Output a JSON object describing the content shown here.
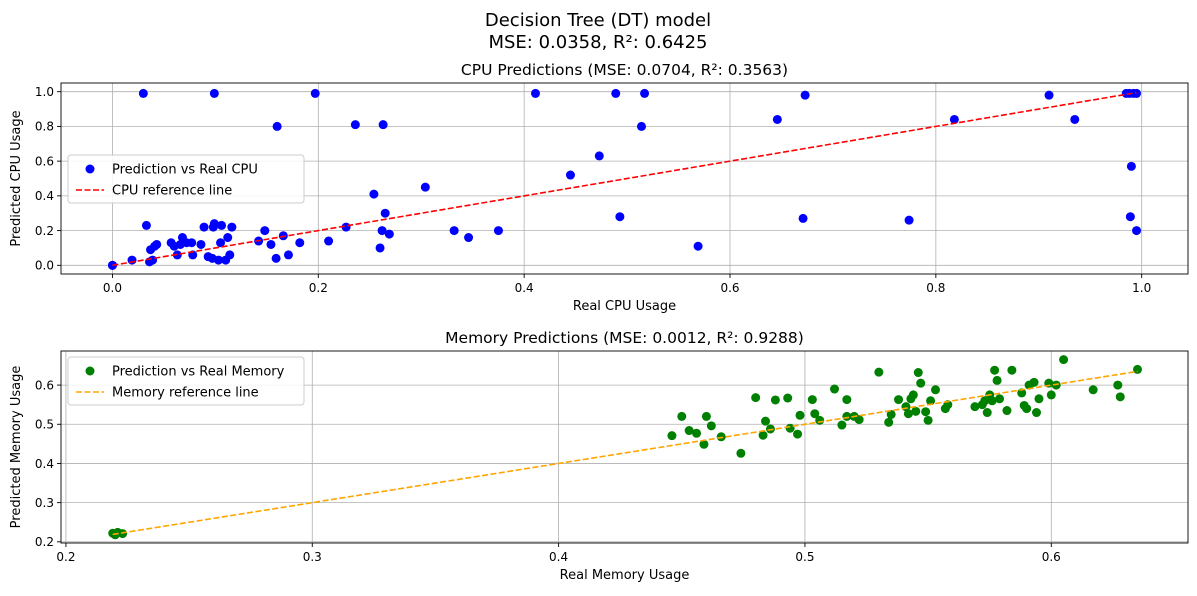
{
  "figure": {
    "title_line1": "Decision Tree (DT) model",
    "title_line2": "MSE: 0.0358, R²: 0.6425"
  },
  "chart_data": [
    {
      "type": "scatter",
      "title": "CPU Predictions (MSE: 0.0704, R²: 0.3563)",
      "xlabel": "Real CPU Usage",
      "ylabel": "Predicted CPU Usage",
      "xlim": [
        -0.05,
        1.045
      ],
      "ylim": [
        -0.05,
        1.05
      ],
      "xticks": [
        0.0,
        0.2,
        0.4,
        0.6,
        0.8,
        1.0
      ],
      "xtick_labels": [
        "0.0",
        "0.2",
        "0.4",
        "0.6",
        "0.8",
        "1.0"
      ],
      "yticks": [
        0.0,
        0.2,
        0.4,
        0.6,
        0.8,
        1.0
      ],
      "ytick_labels": [
        "0.0",
        "0.2",
        "0.4",
        "0.6",
        "0.8",
        "1.0"
      ],
      "grid": true,
      "legend_position": "center-left",
      "series": [
        {
          "name": "Prediction vs Real CPU",
          "kind": "scatter",
          "color": "#0000ff",
          "points": [
            [
              0.0,
              0.0
            ],
            [
              0.0,
              0.0
            ],
            [
              0.019,
              0.03
            ],
            [
              0.03,
              0.99
            ],
            [
              0.033,
              0.23
            ],
            [
              0.036,
              0.02
            ],
            [
              0.037,
              0.09
            ],
            [
              0.039,
              0.03
            ],
            [
              0.041,
              0.11
            ],
            [
              0.043,
              0.12
            ],
            [
              0.057,
              0.13
            ],
            [
              0.06,
              0.11
            ],
            [
              0.063,
              0.06
            ],
            [
              0.066,
              0.12
            ],
            [
              0.068,
              0.16
            ],
            [
              0.072,
              0.13
            ],
            [
              0.077,
              0.13
            ],
            [
              0.078,
              0.06
            ],
            [
              0.086,
              0.12
            ],
            [
              0.089,
              0.22
            ],
            [
              0.093,
              0.05
            ],
            [
              0.097,
              0.04
            ],
            [
              0.098,
              0.22
            ],
            [
              0.099,
              0.24
            ],
            [
              0.099,
              0.99
            ],
            [
              0.103,
              0.03
            ],
            [
              0.105,
              0.13
            ],
            [
              0.106,
              0.23
            ],
            [
              0.11,
              0.03
            ],
            [
              0.112,
              0.16
            ],
            [
              0.114,
              0.06
            ],
            [
              0.116,
              0.22
            ],
            [
              0.142,
              0.14
            ],
            [
              0.148,
              0.2
            ],
            [
              0.154,
              0.12
            ],
            [
              0.159,
              0.04
            ],
            [
              0.16,
              0.8
            ],
            [
              0.166,
              0.17
            ],
            [
              0.171,
              0.06
            ],
            [
              0.182,
              0.13
            ],
            [
              0.197,
              0.99
            ],
            [
              0.21,
              0.14
            ],
            [
              0.227,
              0.22
            ],
            [
              0.236,
              0.81
            ],
            [
              0.254,
              0.41
            ],
            [
              0.26,
              0.1
            ],
            [
              0.262,
              0.2
            ],
            [
              0.263,
              0.81
            ],
            [
              0.265,
              0.3
            ],
            [
              0.269,
              0.18
            ],
            [
              0.304,
              0.45
            ],
            [
              0.332,
              0.2
            ],
            [
              0.346,
              0.16
            ],
            [
              0.375,
              0.2
            ],
            [
              0.411,
              0.99
            ],
            [
              0.445,
              0.52
            ],
            [
              0.473,
              0.63
            ],
            [
              0.489,
              0.99
            ],
            [
              0.493,
              0.28
            ],
            [
              0.514,
              0.8
            ],
            [
              0.517,
              0.99
            ],
            [
              0.569,
              0.11
            ],
            [
              0.646,
              0.84
            ],
            [
              0.671,
              0.27
            ],
            [
              0.673,
              0.98
            ],
            [
              0.774,
              0.26
            ],
            [
              0.818,
              0.84
            ],
            [
              0.91,
              0.98
            ],
            [
              0.935,
              0.84
            ],
            [
              0.985,
              0.99
            ],
            [
              0.988,
              0.99
            ],
            [
              0.99,
              0.57
            ],
            [
              0.989,
              0.28
            ],
            [
              0.992,
              0.99
            ],
            [
              0.995,
              0.2
            ],
            [
              0.995,
              0.99
            ]
          ]
        },
        {
          "name": "CPU reference line",
          "kind": "line",
          "style": "dashed",
          "color": "#ff0000",
          "points": [
            [
              0.0,
              0.0
            ],
            [
              0.995,
              0.995
            ]
          ]
        }
      ]
    },
    {
      "type": "scatter",
      "title": "Memory Predictions (MSE: 0.0012, R²: 0.9288)",
      "xlabel": "Real Memory Usage",
      "ylabel": "Predicted Memory Usage",
      "xlim": [
        0.198,
        0.6555
      ],
      "ylim": [
        0.197,
        0.687
      ],
      "xticks": [
        0.2,
        0.3,
        0.4,
        0.5,
        0.6
      ],
      "xtick_labels": [
        "0.2",
        "0.3",
        "0.4",
        "0.5",
        "0.6"
      ],
      "yticks": [
        0.2,
        0.3,
        0.4,
        0.5,
        0.6
      ],
      "ytick_labels": [
        "0.2",
        "0.3",
        "0.4",
        "0.5",
        "0.6"
      ],
      "grid": true,
      "legend_position": "top-left",
      "series": [
        {
          "name": "Prediction vs Real Memory",
          "kind": "scatter",
          "color": "#008000",
          "points": [
            [
              0.219,
              0.222
            ],
            [
              0.22,
              0.218
            ],
            [
              0.221,
              0.224
            ],
            [
              0.223,
              0.221
            ],
            [
              0.446,
              0.471
            ],
            [
              0.45,
              0.52
            ],
            [
              0.453,
              0.484
            ],
            [
              0.456,
              0.477
            ],
            [
              0.459,
              0.449
            ],
            [
              0.46,
              0.52
            ],
            [
              0.462,
              0.496
            ],
            [
              0.466,
              0.468
            ],
            [
              0.474,
              0.426
            ],
            [
              0.48,
              0.568
            ],
            [
              0.483,
              0.472
            ],
            [
              0.484,
              0.508
            ],
            [
              0.486,
              0.488
            ],
            [
              0.488,
              0.562
            ],
            [
              0.493,
              0.567
            ],
            [
              0.494,
              0.49
            ],
            [
              0.497,
              0.475
            ],
            [
              0.498,
              0.523
            ],
            [
              0.503,
              0.563
            ],
            [
              0.504,
              0.527
            ],
            [
              0.506,
              0.51
            ],
            [
              0.512,
              0.59
            ],
            [
              0.515,
              0.498
            ],
            [
              0.517,
              0.52
            ],
            [
              0.517,
              0.563
            ],
            [
              0.52,
              0.52
            ],
            [
              0.522,
              0.512
            ],
            [
              0.53,
              0.633
            ],
            [
              0.534,
              0.505
            ],
            [
              0.535,
              0.525
            ],
            [
              0.538,
              0.563
            ],
            [
              0.541,
              0.545
            ],
            [
              0.542,
              0.527
            ],
            [
              0.543,
              0.565
            ],
            [
              0.544,
              0.575
            ],
            [
              0.545,
              0.533
            ],
            [
              0.546,
              0.632
            ],
            [
              0.547,
              0.605
            ],
            [
              0.549,
              0.532
            ],
            [
              0.55,
              0.51
            ],
            [
              0.551,
              0.56
            ],
            [
              0.553,
              0.588
            ],
            [
              0.557,
              0.54
            ],
            [
              0.558,
              0.55
            ],
            [
              0.569,
              0.545
            ],
            [
              0.572,
              0.55
            ],
            [
              0.573,
              0.56
            ],
            [
              0.574,
              0.53
            ],
            [
              0.575,
              0.575
            ],
            [
              0.576,
              0.56
            ],
            [
              0.577,
              0.638
            ],
            [
              0.578,
              0.612
            ],
            [
              0.579,
              0.565
            ],
            [
              0.582,
              0.535
            ],
            [
              0.584,
              0.638
            ],
            [
              0.588,
              0.58
            ],
            [
              0.589,
              0.548
            ],
            [
              0.59,
              0.54
            ],
            [
              0.591,
              0.6
            ],
            [
              0.593,
              0.607
            ],
            [
              0.594,
              0.53
            ],
            [
              0.595,
              0.565
            ],
            [
              0.599,
              0.605
            ],
            [
              0.6,
              0.575
            ],
            [
              0.602,
              0.6
            ],
            [
              0.605,
              0.665
            ],
            [
              0.617,
              0.588
            ],
            [
              0.627,
              0.6
            ],
            [
              0.628,
              0.57
            ],
            [
              0.635,
              0.64
            ]
          ]
        },
        {
          "name": "Memory reference line",
          "kind": "line",
          "style": "dashed",
          "color": "#ffa500",
          "points": [
            [
              0.219,
              0.219
            ],
            [
              0.635,
              0.635
            ]
          ]
        }
      ]
    }
  ]
}
